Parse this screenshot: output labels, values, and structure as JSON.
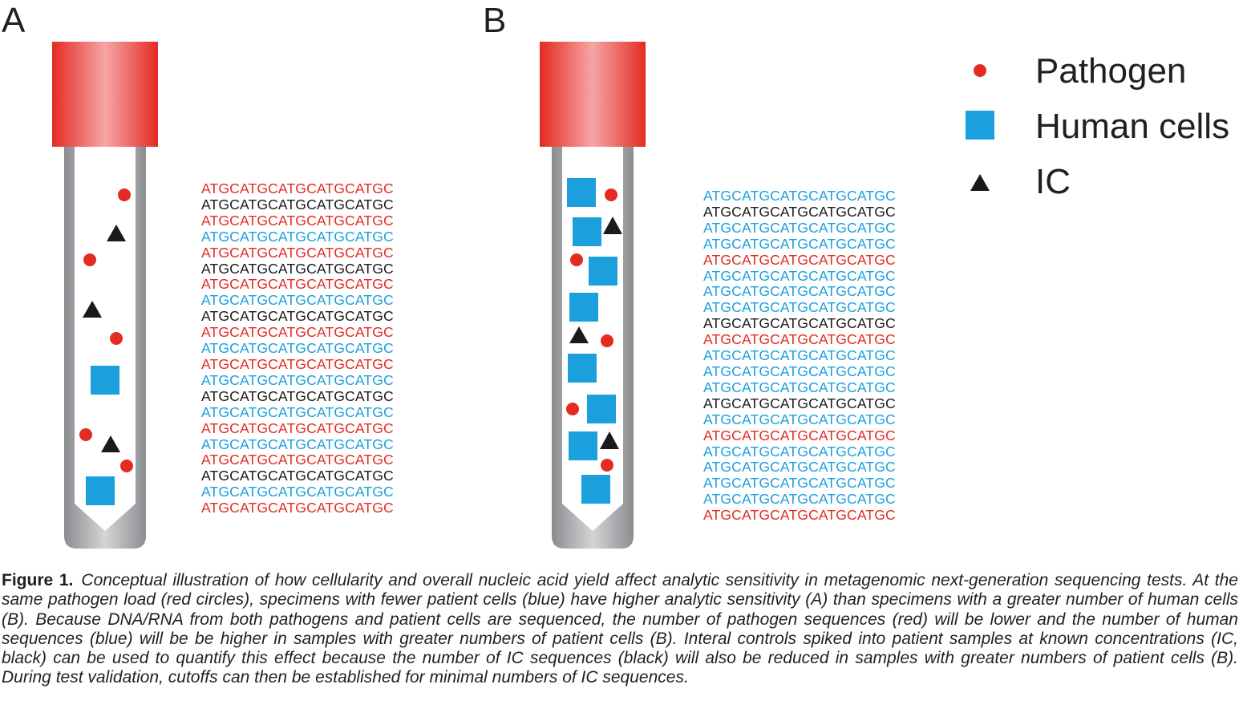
{
  "panels": {
    "a": {
      "letter": "A",
      "sequences": [
        {
          "text": "ATGCATGCATGCATGCATGC",
          "kind": "pathogen"
        },
        {
          "text": "ATGCATGCATGCATGCATGC",
          "kind": "ic"
        },
        {
          "text": "ATGCATGCATGCATGCATGC",
          "kind": "pathogen"
        },
        {
          "text": "ATGCATGCATGCATGCATGC",
          "kind": "human"
        },
        {
          "text": "ATGCATGCATGCATGCATGC",
          "kind": "pathogen"
        },
        {
          "text": "ATGCATGCATGCATGCATGC",
          "kind": "ic"
        },
        {
          "text": "ATGCATGCATGCATGCATGC",
          "kind": "pathogen"
        },
        {
          "text": "ATGCATGCATGCATGCATGC",
          "kind": "human"
        },
        {
          "text": "ATGCATGCATGCATGCATGC",
          "kind": "ic"
        },
        {
          "text": "ATGCATGCATGCATGCATGC",
          "kind": "pathogen"
        },
        {
          "text": "ATGCATGCATGCATGCATGC",
          "kind": "human"
        },
        {
          "text": "ATGCATGCATGCATGCATGC",
          "kind": "pathogen"
        },
        {
          "text": "ATGCATGCATGCATGCATGC",
          "kind": "human"
        },
        {
          "text": "ATGCATGCATGCATGCATGC",
          "kind": "ic"
        },
        {
          "text": "ATGCATGCATGCATGCATGC",
          "kind": "human"
        },
        {
          "text": "ATGCATGCATGCATGCATGC",
          "kind": "pathogen"
        },
        {
          "text": "ATGCATGCATGCATGCATGC",
          "kind": "human"
        },
        {
          "text": "ATGCATGCATGCATGCATGC",
          "kind": "pathogen"
        },
        {
          "text": "ATGCATGCATGCATGCATGC",
          "kind": "ic"
        },
        {
          "text": "ATGCATGCATGCATGCATGC",
          "kind": "human"
        },
        {
          "text": "ATGCATGCATGCATGCATGC",
          "kind": "pathogen"
        }
      ]
    },
    "b": {
      "letter": "B",
      "sequences": [
        {
          "text": "ATGCATGCATGCATGCATGC",
          "kind": "human"
        },
        {
          "text": "ATGCATGCATGCATGCATGC",
          "kind": "ic"
        },
        {
          "text": "ATGCATGCATGCATGCATGC",
          "kind": "human"
        },
        {
          "text": "ATGCATGCATGCATGCATGC",
          "kind": "human"
        },
        {
          "text": "ATGCATGCATGCATGCATGC",
          "kind": "pathogen"
        },
        {
          "text": "ATGCATGCATGCATGCATGC",
          "kind": "human"
        },
        {
          "text": "ATGCATGCATGCATGCATGC",
          "kind": "human"
        },
        {
          "text": "ATGCATGCATGCATGCATGC",
          "kind": "human"
        },
        {
          "text": "ATGCATGCATGCATGCATGC",
          "kind": "ic"
        },
        {
          "text": "ATGCATGCATGCATGCATGC",
          "kind": "pathogen"
        },
        {
          "text": "ATGCATGCATGCATGCATGC",
          "kind": "human"
        },
        {
          "text": "ATGCATGCATGCATGCATGC",
          "kind": "human"
        },
        {
          "text": "ATGCATGCATGCATGCATGC",
          "kind": "human"
        },
        {
          "text": "ATGCATGCATGCATGCATGC",
          "kind": "ic"
        },
        {
          "text": "ATGCATGCATGCATGCATGC",
          "kind": "human"
        },
        {
          "text": "ATGCATGCATGCATGCATGC",
          "kind": "pathogen"
        },
        {
          "text": "ATGCATGCATGCATGCATGC",
          "kind": "human"
        },
        {
          "text": "ATGCATGCATGCATGCATGC",
          "kind": "human"
        },
        {
          "text": "ATGCATGCATGCATGCATGC",
          "kind": "human"
        },
        {
          "text": "ATGCATGCATGCATGCATGC",
          "kind": "human"
        },
        {
          "text": "ATGCATGCATGCATGCATGC",
          "kind": "pathogen"
        }
      ]
    }
  },
  "legend": {
    "pathogen": "Pathogen",
    "human": "Human cells",
    "ic": "IC"
  },
  "colors": {
    "pathogen": "#e32b22",
    "human": "#1ba0dd",
    "ic": "#1a1a1a",
    "cap": "#e32b22",
    "tube": "#a7a9ac"
  },
  "caption": {
    "label": "Figure 1.",
    "text": "Conceptual illustration of how cellularity and overall nucleic acid yield affect analytic sensitivity in metagenomic next-generation sequencing tests. At the same pathogen load (red circles), specimens with fewer patient cells (blue) have higher analytic sensitivity (A) than specimens with a greater number of human cells (B). Because DNA/RNA from both pathogens and patient cells are sequenced, the number of pathogen sequences (red) will be lower and the number of human sequences (blue) will be be higher in samples with greater numbers of patient cells (B). Interal controls spiked into patient samples at known concentrations (IC, black) can be used to quantify this effect because the number of IC sequences (black) will also be reduced in samples with greater numbers of patient cells (B). During test validation, cutoffs can then be established for minimal numbers of IC sequences."
  }
}
